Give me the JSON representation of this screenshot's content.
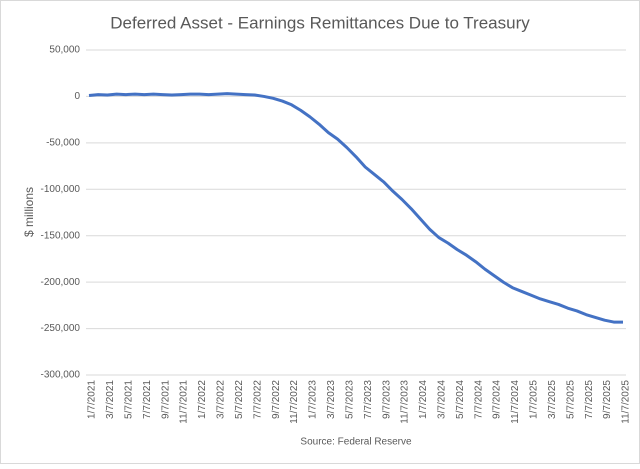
{
  "chart_data": {
    "type": "line",
    "title": "Deferred Asset - Earnings Remittances Due to Treasury",
    "y_label": "$ millions",
    "source": "Source: Federal Reserve",
    "categories": [
      "1/7/2021",
      null,
      "3/7/2021",
      null,
      "5/7/2021",
      null,
      "7/7/2021",
      null,
      "9/7/2021",
      null,
      "11/7/2021",
      null,
      "1/7/2022",
      null,
      "3/7/2022",
      null,
      "5/7/2022",
      null,
      "7/7/2022",
      null,
      "9/7/2022",
      null,
      "11/7/2022",
      null,
      "1/7/2023",
      null,
      "3/7/2023",
      null,
      "5/7/2023",
      null,
      "7/7/2023",
      null,
      "9/7/2023",
      null,
      "11/7/2023",
      null,
      "1/7/2024",
      null,
      "3/7/2024",
      null,
      "5/7/2024",
      null,
      "7/7/2024",
      null,
      "9/7/2024",
      null,
      "11/7/2024",
      null,
      "1/7/2025",
      null,
      "3/7/2025",
      null,
      "5/7/2025",
      null,
      "7/7/2025",
      null,
      "9/7/2025",
      null,
      "11/7/2025"
    ],
    "series": [
      {
        "name": "Deferred Asset",
        "color": "#4472c4",
        "values": [
          1000,
          2000,
          1500,
          2500,
          2000,
          2500,
          2000,
          2500,
          2000,
          1500,
          2000,
          2500,
          2500,
          2000,
          2500,
          3000,
          2500,
          2000,
          1500,
          0,
          -2000,
          -5000,
          -9000,
          -15000,
          -22000,
          -30000,
          -39000,
          -46000,
          -55000,
          -65000,
          -76000,
          -84000,
          -92000,
          -102000,
          -111000,
          -121000,
          -132000,
          -143000,
          -152000,
          -158000,
          -165000,
          -171000,
          -178000,
          -186000,
          -193000,
          -200000,
          -206000,
          -210000,
          -214000,
          -218000,
          -221000,
          -224000,
          -228000,
          -231000,
          -235000,
          -238000,
          -241000,
          -243000,
          -243000
        ]
      }
    ],
    "ylim": [
      -300000,
      50000
    ],
    "yticks": [
      {
        "value": -300000,
        "label": "-300,000"
      },
      {
        "value": -250000,
        "label": "-250,000"
      },
      {
        "value": -200000,
        "label": "-200,000"
      },
      {
        "value": -150000,
        "label": "-150,000"
      },
      {
        "value": -100000,
        "label": "-100,000"
      },
      {
        "value": -50000,
        "label": "-50,000"
      },
      0,
      {
        "value": 50000,
        "label": "50,000"
      }
    ],
    "grid": true
  }
}
